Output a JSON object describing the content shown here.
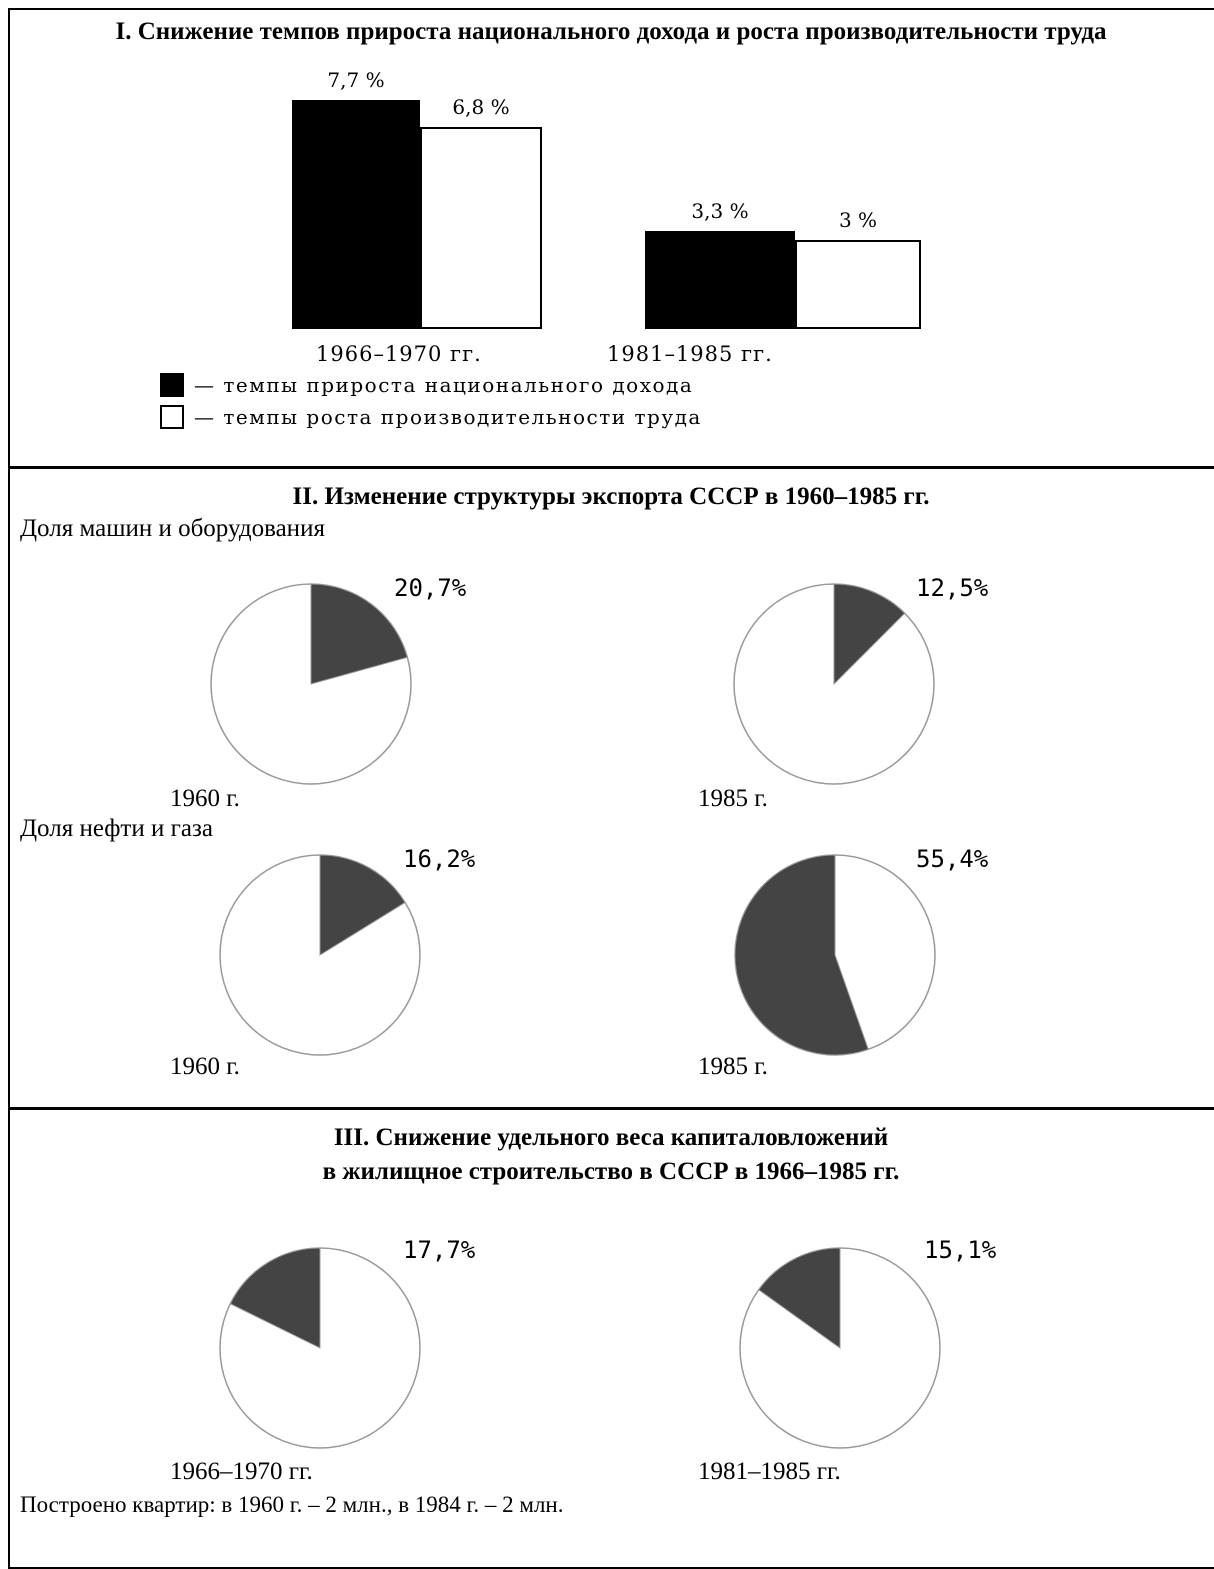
{
  "section1": {
    "title": "I. Снижение темпов прироста национального дохода и роста производительности труда",
    "legend": {
      "black": "— темпы прироста национального дохода",
      "white": "— темпы роста производительности труда"
    }
  },
  "section2": {
    "title": "II. Изменение структуры экспорта СССР в 1960–1985 гг.",
    "machines_label": "Доля машин и оборудования",
    "oil_label": "Доля нефти и газа"
  },
  "section3": {
    "title_line1": "III. Снижение удельного веса капиталовложений",
    "title_line2": "в жилищное строительство в СССР в 1966–1985 гг.",
    "note": "Построено квартир: в 1960 г. – 2 млн., в 1984 г. – 2 млн."
  },
  "colors": {
    "bar_black": "#000000",
    "pie_dark": "#444444",
    "pie_outline": "#999999"
  },
  "chart_data": [
    {
      "type": "bar",
      "categories": [
        "1966–1970 гг.",
        "1981–1985 гг."
      ],
      "series": [
        {
          "name": "темпы прироста национального дохода",
          "values": [
            7.7,
            3.3
          ],
          "labels": [
            "7,7 %",
            "3,3 %"
          ]
        },
        {
          "name": "темпы роста производительности труда",
          "values": [
            6.8,
            3.0
          ],
          "labels": [
            "6,8 %",
            "3 %"
          ]
        }
      ]
    },
    {
      "type": "pie",
      "group": "Доля машин и оборудования",
      "category": "1960 г.",
      "value": 20.7,
      "label": "20,7%"
    },
    {
      "type": "pie",
      "group": "Доля машин и оборудования",
      "category": "1985 г.",
      "value": 12.5,
      "label": "12,5%"
    },
    {
      "type": "pie",
      "group": "Доля нефти и газа",
      "category": "1960 г.",
      "value": 16.2,
      "label": "16,2%"
    },
    {
      "type": "pie",
      "group": "Доля нефти и газа",
      "category": "1985 г.",
      "value": 55.4,
      "label": "55,4%"
    },
    {
      "type": "pie",
      "group": "жилищное строительство",
      "category": "1966–1970 гг.",
      "value": 17.7,
      "label": "17,7%"
    },
    {
      "type": "pie",
      "group": "жилищное строительство",
      "category": "1981–1985 гг.",
      "value": 15.1,
      "label": "15,1%"
    }
  ]
}
